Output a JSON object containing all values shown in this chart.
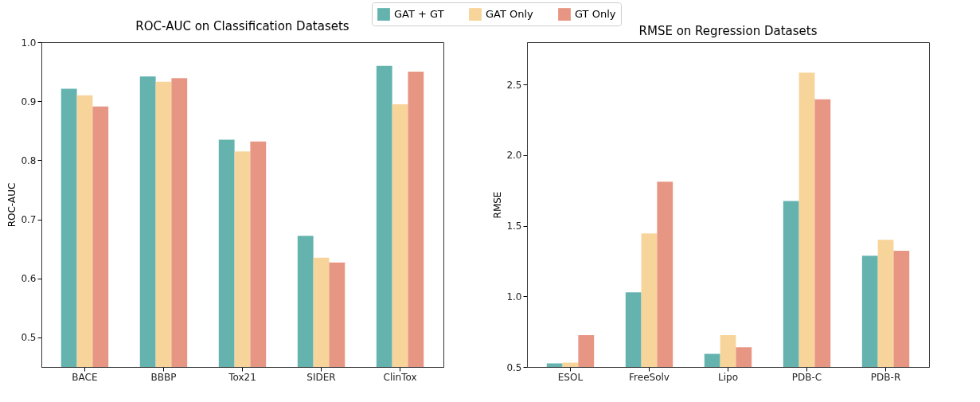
{
  "chart_data": [
    {
      "type": "bar",
      "title": "ROC-AUC on Classification Datasets",
      "ylabel": "ROC-AUC",
      "categories": [
        "BACE",
        "BBBP",
        "Tox21",
        "SIDER",
        "ClinTox"
      ],
      "ylim": [
        0.45,
        1.0
      ],
      "yticks": [
        {
          "value": 0.5,
          "label": "0.5"
        },
        {
          "value": 0.6,
          "label": "0.6"
        },
        {
          "value": 0.7,
          "label": "0.7"
        },
        {
          "value": 0.8,
          "label": "0.8"
        },
        {
          "value": 0.9,
          "label": "0.9"
        },
        {
          "value": 1.0,
          "label": "1.0"
        }
      ],
      "grid": false,
      "legend": "top",
      "series": [
        {
          "name": "GAT + GT",
          "color": "#64b3af",
          "values": [
            0.921,
            0.942,
            0.835,
            0.672,
            0.96
          ]
        },
        {
          "name": "GAT Only",
          "color": "#f7d49a",
          "values": [
            0.91,
            0.933,
            0.815,
            0.635,
            0.895
          ]
        },
        {
          "name": "GT Only",
          "color": "#e89684",
          "values": [
            0.891,
            0.939,
            0.832,
            0.627,
            0.95
          ]
        }
      ]
    },
    {
      "type": "bar",
      "title": "RMSE on Regression Datasets",
      "ylabel": "RMSE",
      "categories": [
        "ESOL",
        "FreeSolv",
        "Lipo",
        "PDB-C",
        "PDB-R"
      ],
      "ylim": [
        0.5,
        2.8
      ],
      "yticks": [
        {
          "value": 0.5,
          "label": "0.5"
        },
        {
          "value": 1.0,
          "label": "1.0"
        },
        {
          "value": 1.5,
          "label": "1.5"
        },
        {
          "value": 2.0,
          "label": "2.0"
        },
        {
          "value": 2.5,
          "label": "2.5"
        }
      ],
      "grid": false,
      "legend": "top",
      "series": [
        {
          "name": "GAT + GT",
          "color": "#64b3af",
          "values": [
            0.525,
            1.029,
            0.593,
            1.676,
            1.288
          ]
        },
        {
          "name": "GAT Only",
          "color": "#f7d49a",
          "values": [
            0.531,
            1.446,
            0.725,
            2.585,
            1.401
          ]
        },
        {
          "name": "GT Only",
          "color": "#e89684",
          "values": [
            0.725,
            1.812,
            0.64,
            2.395,
            1.323
          ]
        }
      ]
    }
  ]
}
